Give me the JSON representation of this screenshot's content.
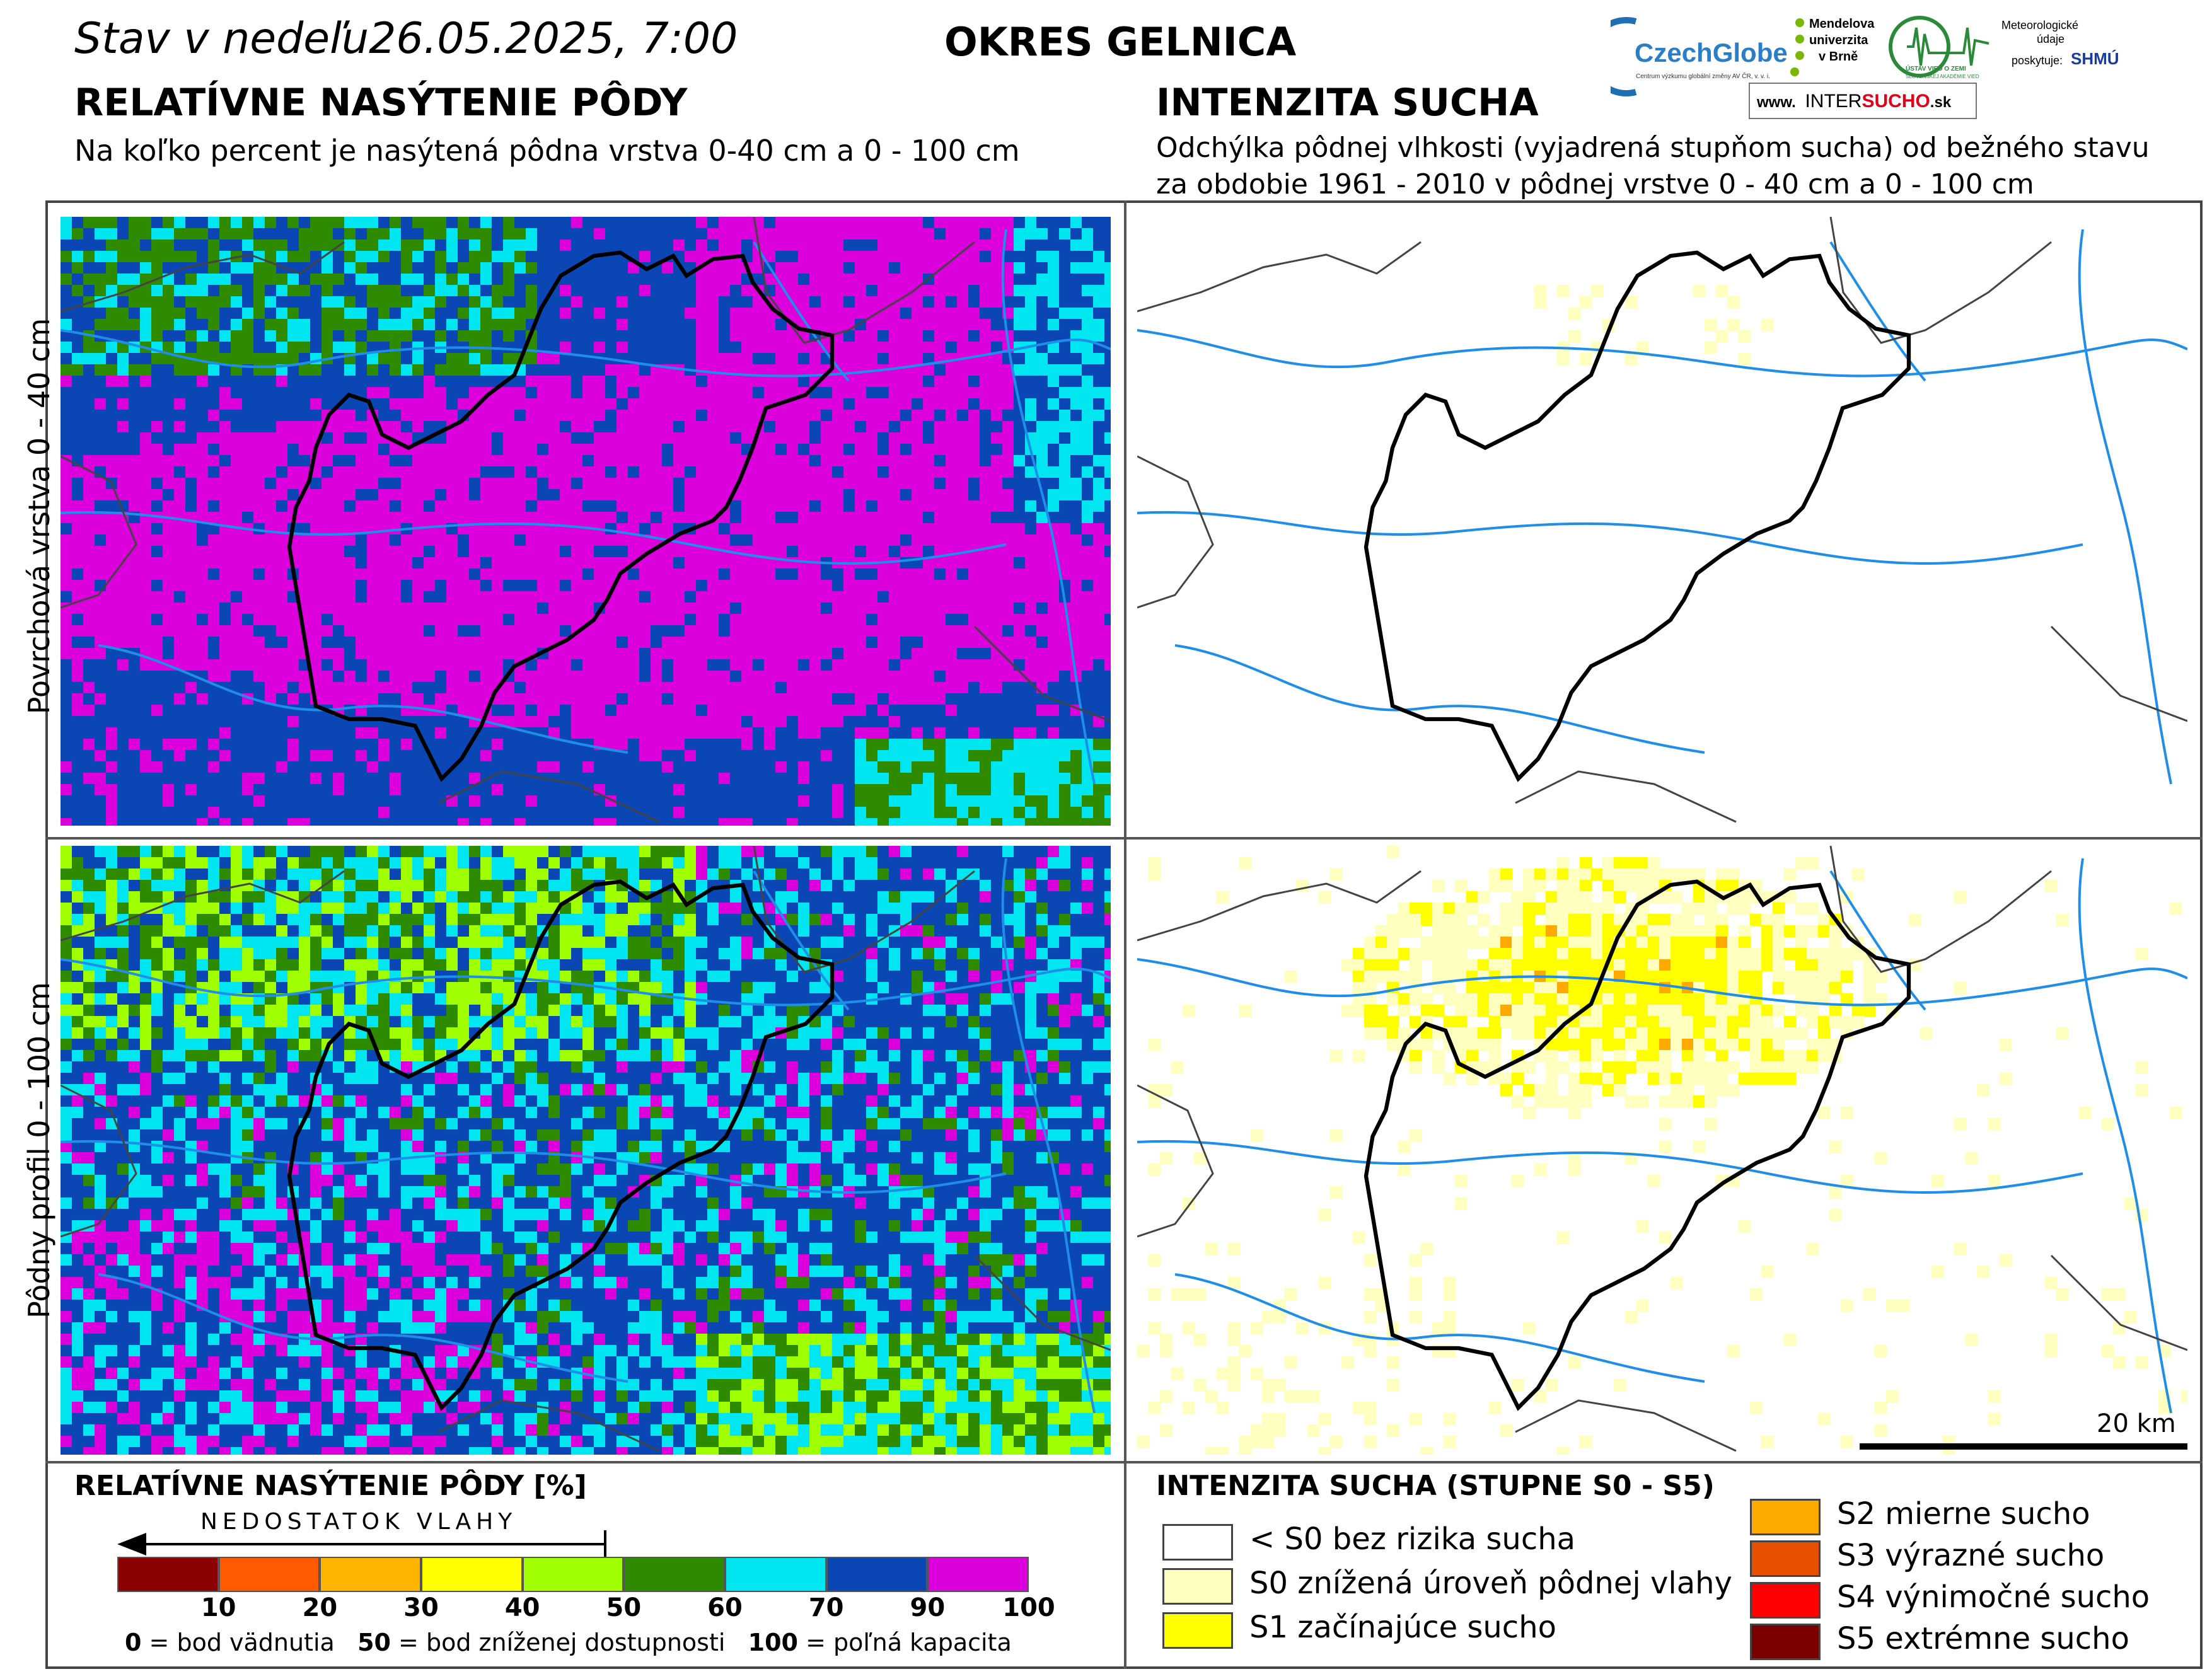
{
  "header": {
    "date_line": "Stav v nedeľu",
    "date_value": "26.05.2025, 7:00",
    "district": "OKRES  GELNICA",
    "left_title": "RELATÍVNE NASÝTENIE PÔDY",
    "left_subtitle": "Na koľko percent je nasýtená pôdna vrstva 0-40 cm a 0 - 100 cm",
    "right_title": "INTENZITA SUCHA",
    "right_subtitle_1": "Odchýlka pôdnej vlhkosti (vyjadrená stupňom sucha) od bežného stavu",
    "right_subtitle_2": "za obdobie 1961 - 2010 v pôdnej vrstve 0 - 40 cm a 0 - 100 cm"
  },
  "logos": {
    "czechglobe": "CzechGlobe",
    "czechglobe_sub": "Centrum výzkumu globální změny AV ČR, v. v. i.",
    "mendelu_1": "Mendelova",
    "mendelu_2": "univerzita",
    "mendelu_3": "v Brně",
    "ustav": "ÚSTAV VIED O ZEMI",
    "ustav_sub": "SLOVENSKEJ AKADÉMIE VIED",
    "meteo_1": "Meteorologické",
    "meteo_2": "údaje",
    "meteo_3": "poskytuje:",
    "shmu": "SHMÚ",
    "intersucho_prefix": "www.",
    "intersucho_a": "INTER",
    "intersucho_b": "SUCHO",
    "intersucho_c": ".sk"
  },
  "row_labels": {
    "top": "Povrchová vrstva 0 - 40 cm",
    "bottom": "Pôdny profil 0 - 100 cm"
  },
  "scale_bar": "20 km",
  "legend_left": {
    "title": "RELATÍVNE NASÝTENIE PÔDY [%]",
    "arrow_label": "NEDOSTATOK VLAHY",
    "ticks": [
      "10",
      "20",
      "30",
      "40",
      "50",
      "60",
      "70",
      "90",
      "100"
    ],
    "colors": [
      "#8b0000",
      "#ff5a00",
      "#ffb400",
      "#ffff00",
      "#a0ff00",
      "#2e8b00",
      "#00e6f0",
      "#0a46b4",
      "#dc00dc"
    ],
    "note_0_num": "0",
    "note_0_txt": " = bod vädnutia",
    "note_50_num": "50",
    "note_50_txt": " = bod zníženej dostupnosti",
    "note_100_num": "100",
    "note_100_txt": " = poľná kapacita"
  },
  "legend_right": {
    "title": "INTENZITA SUCHA (STUPNE S0 - S5)",
    "items": [
      {
        "label": "< S0 bez rizika sucha",
        "color": "#ffffff"
      },
      {
        "label": "S0 znížená úroveň pôdnej vlahy",
        "color": "#ffffc0"
      },
      {
        "label": "S1 začínajúce sucho",
        "color": "#ffff00"
      },
      {
        "label": "S2 mierne sucho",
        "color": "#ffaa00"
      },
      {
        "label": "S3 výrazné sucho",
        "color": "#e65000"
      },
      {
        "label": "S4 výnimočné sucho",
        "color": "#ff0000"
      },
      {
        "label": "S5 extrémne sucho",
        "color": "#7a0000"
      }
    ]
  }
}
